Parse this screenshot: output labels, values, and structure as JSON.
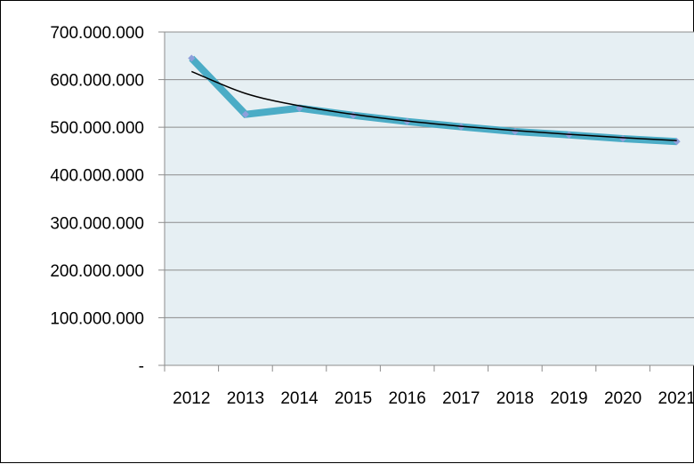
{
  "chart_data": {
    "type": "line",
    "title": "",
    "xlabel": "",
    "ylabel": "",
    "categories": [
      "2012",
      "2013",
      "2014",
      "2015",
      "2016",
      "2017",
      "2018",
      "2019",
      "2020",
      "2021"
    ],
    "series": [
      {
        "values": [
          645000000,
          527000000,
          540000000,
          525000000,
          512000000,
          501000000,
          491000000,
          484000000,
          476000000,
          470000000
        ]
      }
    ],
    "trendline": {
      "values": [
        617000000,
        571000000,
        545000000,
        527000000,
        513000000,
        502000000,
        493000000,
        485000000,
        478000000,
        472000000
      ]
    },
    "y_ticks": [
      0,
      100000000,
      200000000,
      300000000,
      400000000,
      500000000,
      600000000,
      700000000
    ],
    "y_tick_labels": [
      "-",
      "100.000.000",
      "200.000.000",
      "300.000.000",
      "400.000.000",
      "500.000.000",
      "600.000.000",
      "700.000.000"
    ],
    "ylim": [
      0,
      700000000
    ],
    "grid": true,
    "legend": "none",
    "colors": {
      "plot_background": "#e6eff3",
      "series_line": "#4bacc6",
      "series_marker": "#8e9fdb",
      "trendline": "#000000",
      "gridline": "#8c8c8c",
      "axis": "#8c8c8c"
    }
  }
}
